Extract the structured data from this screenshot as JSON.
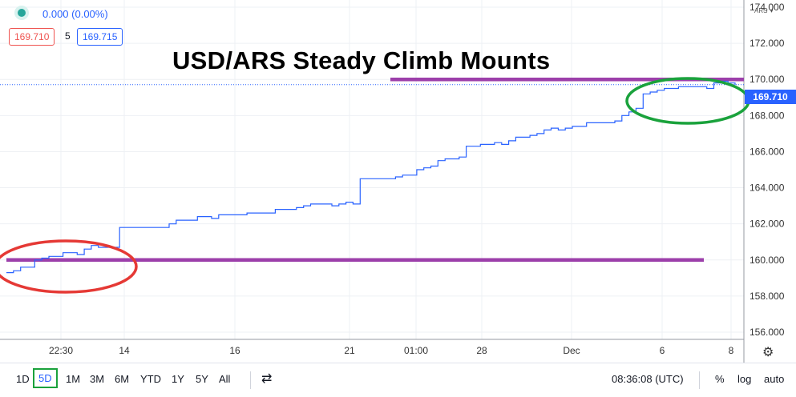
{
  "header": {
    "change": "0.000 (0.00%)",
    "bid": "169.710",
    "spread": "5",
    "ask": "169.715",
    "symbol": "ARS",
    "symbol_caret": "▾"
  },
  "headline": "USD/ARS Steady Climb Mounts",
  "last_price_label": "169.710",
  "colors": {
    "price_line": "#2962ff",
    "support_resistance": "#9c3faa",
    "red_circle": "#e53935",
    "green_circle": "#1aa23c",
    "last_price_bg": "#2962ff"
  },
  "chart_data": {
    "type": "line",
    "ylim": [
      155.6,
      174.4
    ],
    "y_ticks": [
      "156.000",
      "158.000",
      "160.000",
      "162.000",
      "164.000",
      "166.000",
      "168.000",
      "170.000",
      "172.000",
      "174.000"
    ],
    "x_ticks": [
      "22:30",
      "14",
      "16",
      "21",
      "01:00",
      "28",
      "Dec",
      "6",
      "8"
    ],
    "series": [
      {
        "values": [
          159.3,
          159.4,
          159.6,
          159.6,
          160.0,
          160.1,
          160.2,
          160.2,
          160.4,
          160.4,
          160.3,
          160.6,
          160.8,
          160.7,
          160.7,
          160.7,
          161.8,
          161.8,
          161.8,
          161.8,
          161.8,
          161.8,
          161.8,
          162.0,
          162.2,
          162.2,
          162.2,
          162.4,
          162.4,
          162.3,
          162.5,
          162.5,
          162.5,
          162.5,
          162.6,
          162.6,
          162.6,
          162.6,
          162.8,
          162.8,
          162.8,
          162.9,
          163.0,
          163.1,
          163.1,
          163.1,
          163.0,
          163.1,
          163.2,
          163.1,
          164.5,
          164.5,
          164.5,
          164.5,
          164.5,
          164.6,
          164.7,
          164.7,
          165.0,
          165.1,
          165.2,
          165.5,
          165.6,
          165.6,
          165.7,
          166.3,
          166.3,
          166.4,
          166.4,
          166.5,
          166.4,
          166.6,
          166.8,
          166.8,
          166.9,
          167.0,
          167.2,
          167.3,
          167.2,
          167.3,
          167.4,
          167.4,
          167.6,
          167.6,
          167.6,
          167.6,
          167.7,
          168.0,
          168.2,
          168.4,
          169.2,
          169.3,
          169.4,
          169.5,
          169.5,
          169.6,
          169.6,
          169.6,
          169.6,
          169.5,
          169.8,
          169.9,
          169.8,
          169.7
        ]
      }
    ],
    "horizontal_lines": [
      160.0,
      170.0
    ],
    "last_value": 169.71
  },
  "toolbar": {
    "ranges": [
      "1D",
      "5D",
      "1M",
      "3M",
      "6M",
      "YTD",
      "1Y",
      "5Y",
      "All"
    ],
    "active_range": "5D",
    "time": "08:36:08 (UTC)",
    "percent": "%",
    "log": "log",
    "auto": "auto"
  }
}
